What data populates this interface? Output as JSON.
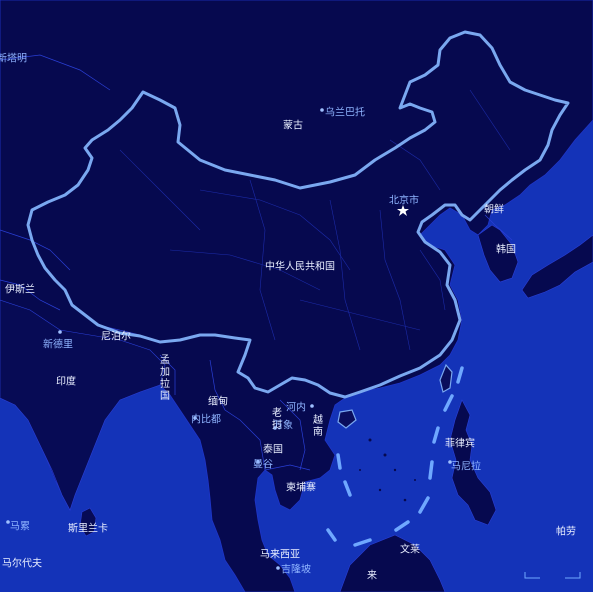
{
  "colors": {
    "ocean": "#1433b8",
    "land": "#06094f",
    "china_land": "#0a0d5c",
    "border": "#2a3fd6",
    "china_outline": "#7aa8f0",
    "nine_dash": "#6fa8ff",
    "label": "#e8eeff",
    "city_label": "#8fb4ff"
  },
  "countries": {
    "china": "中华人民共和国",
    "mongolia": "蒙古",
    "north_korea": "朝鲜",
    "south_korea": "韩国",
    "india": "印度",
    "nepal": "尼泊尔",
    "bangladesh": "孟加拉国",
    "myanmar": "缅甸",
    "laos": "老挝",
    "vietnam": "越南",
    "thailand": "泰国",
    "cambodia": "柬埔寨",
    "philippines": "菲律宾",
    "malaysia": "马来西亚",
    "sri_lanka": "斯里兰卡",
    "maldives": "马尔代夫",
    "palau": "帕劳",
    "pakistan_partial": "伊斯兰",
    "brunei_partial": "文莱",
    "malaysia_bottom": "马来西亚",
    "indonesia_partial": "来"
  },
  "cities": {
    "beijing": "北京市",
    "ulaanbaatar": "乌兰巴托",
    "new_delhi": "新德里",
    "naypyidaw": "内比都",
    "vientiane": "万象",
    "hanoi": "河内",
    "bangkok": "曼谷",
    "manila": "马尼拉",
    "kuala_lumpur": "吉隆坡",
    "male": "马累",
    "xinjiang_edge": "新塔明"
  }
}
